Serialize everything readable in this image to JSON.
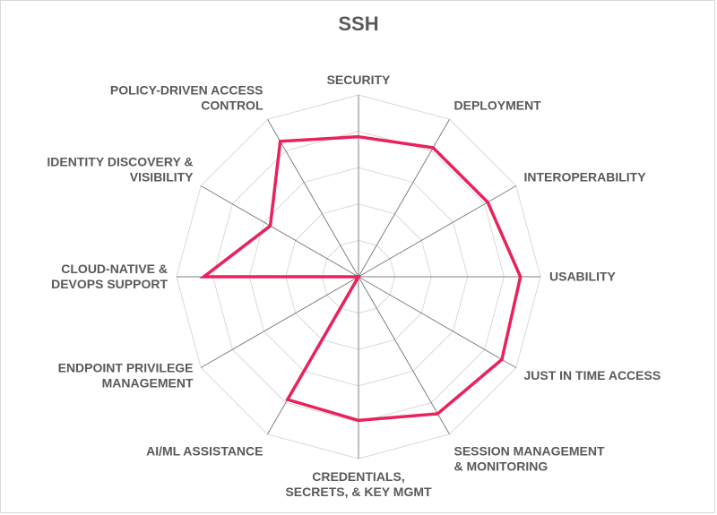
{
  "chart_data": {
    "type": "radar",
    "title": "SSH",
    "categories": [
      [
        "SECURITY"
      ],
      [
        "DEPLOYMENT"
      ],
      [
        "INTEROPERABILITY"
      ],
      [
        "USABILITY"
      ],
      [
        "JUST IN TIME ACCESS"
      ],
      [
        "SESSION MANAGEMENT",
        "& MONITORING"
      ],
      [
        "CREDENTIALS,",
        "SECRETS, & KEY MGMT"
      ],
      [
        "AI/ML ASSISTANCE"
      ],
      [
        "ENDPOINT PRIVILEGE",
        "MANAGEMENT"
      ],
      [
        "CLOUD-NATIVE &",
        "DEVOPS SUPPORT"
      ],
      [
        "IDENTITY DISCOVERY &",
        "VISIBILITY"
      ],
      [
        "POLICY-DRIVEN ACCESS",
        "CONTROL"
      ]
    ],
    "series": [
      {
        "values": [
          7.7,
          8.2,
          8.2,
          8.9,
          9.1,
          8.7,
          7.9,
          7.8,
          0,
          8.5,
          5.6,
          8.6
        ],
        "color": "#e8225b"
      }
    ],
    "rlim": [
      0,
      10
    ],
    "gridlines": 5,
    "grid": true,
    "legend": "none"
  }
}
